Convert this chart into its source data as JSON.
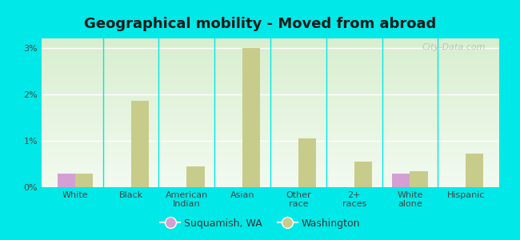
{
  "title": "Geographical mobility - Moved from abroad",
  "categories": [
    "White",
    "Black",
    "American\nIndian",
    "Asian",
    "Other\nrace",
    "2+\nraces",
    "White\nalone",
    "Hispanic"
  ],
  "suquamish_values": [
    0.3,
    0.0,
    0.0,
    0.0,
    0.0,
    0.0,
    0.3,
    0.0
  ],
  "washington_values": [
    0.3,
    1.85,
    0.45,
    3.0,
    1.05,
    0.55,
    0.35,
    0.72
  ],
  "suquamish_color": "#d4a0d4",
  "washington_color": "#c8cc8a",
  "outer_bg": "#00e8e8",
  "plot_bg_top": "#d8eece",
  "plot_bg_bottom": "#f2faf0",
  "grid_color": "#ffffff",
  "ylim": [
    0,
    3.2
  ],
  "yticks": [
    0,
    1,
    2,
    3
  ],
  "ytick_labels": [
    "0%",
    "1%",
    "2%",
    "3%"
  ],
  "bar_width": 0.32,
  "title_fontsize": 13,
  "tick_fontsize": 8,
  "legend_suquamish": "Suquamish, WA",
  "legend_washington": "Washington",
  "watermark": "City-Data.com"
}
